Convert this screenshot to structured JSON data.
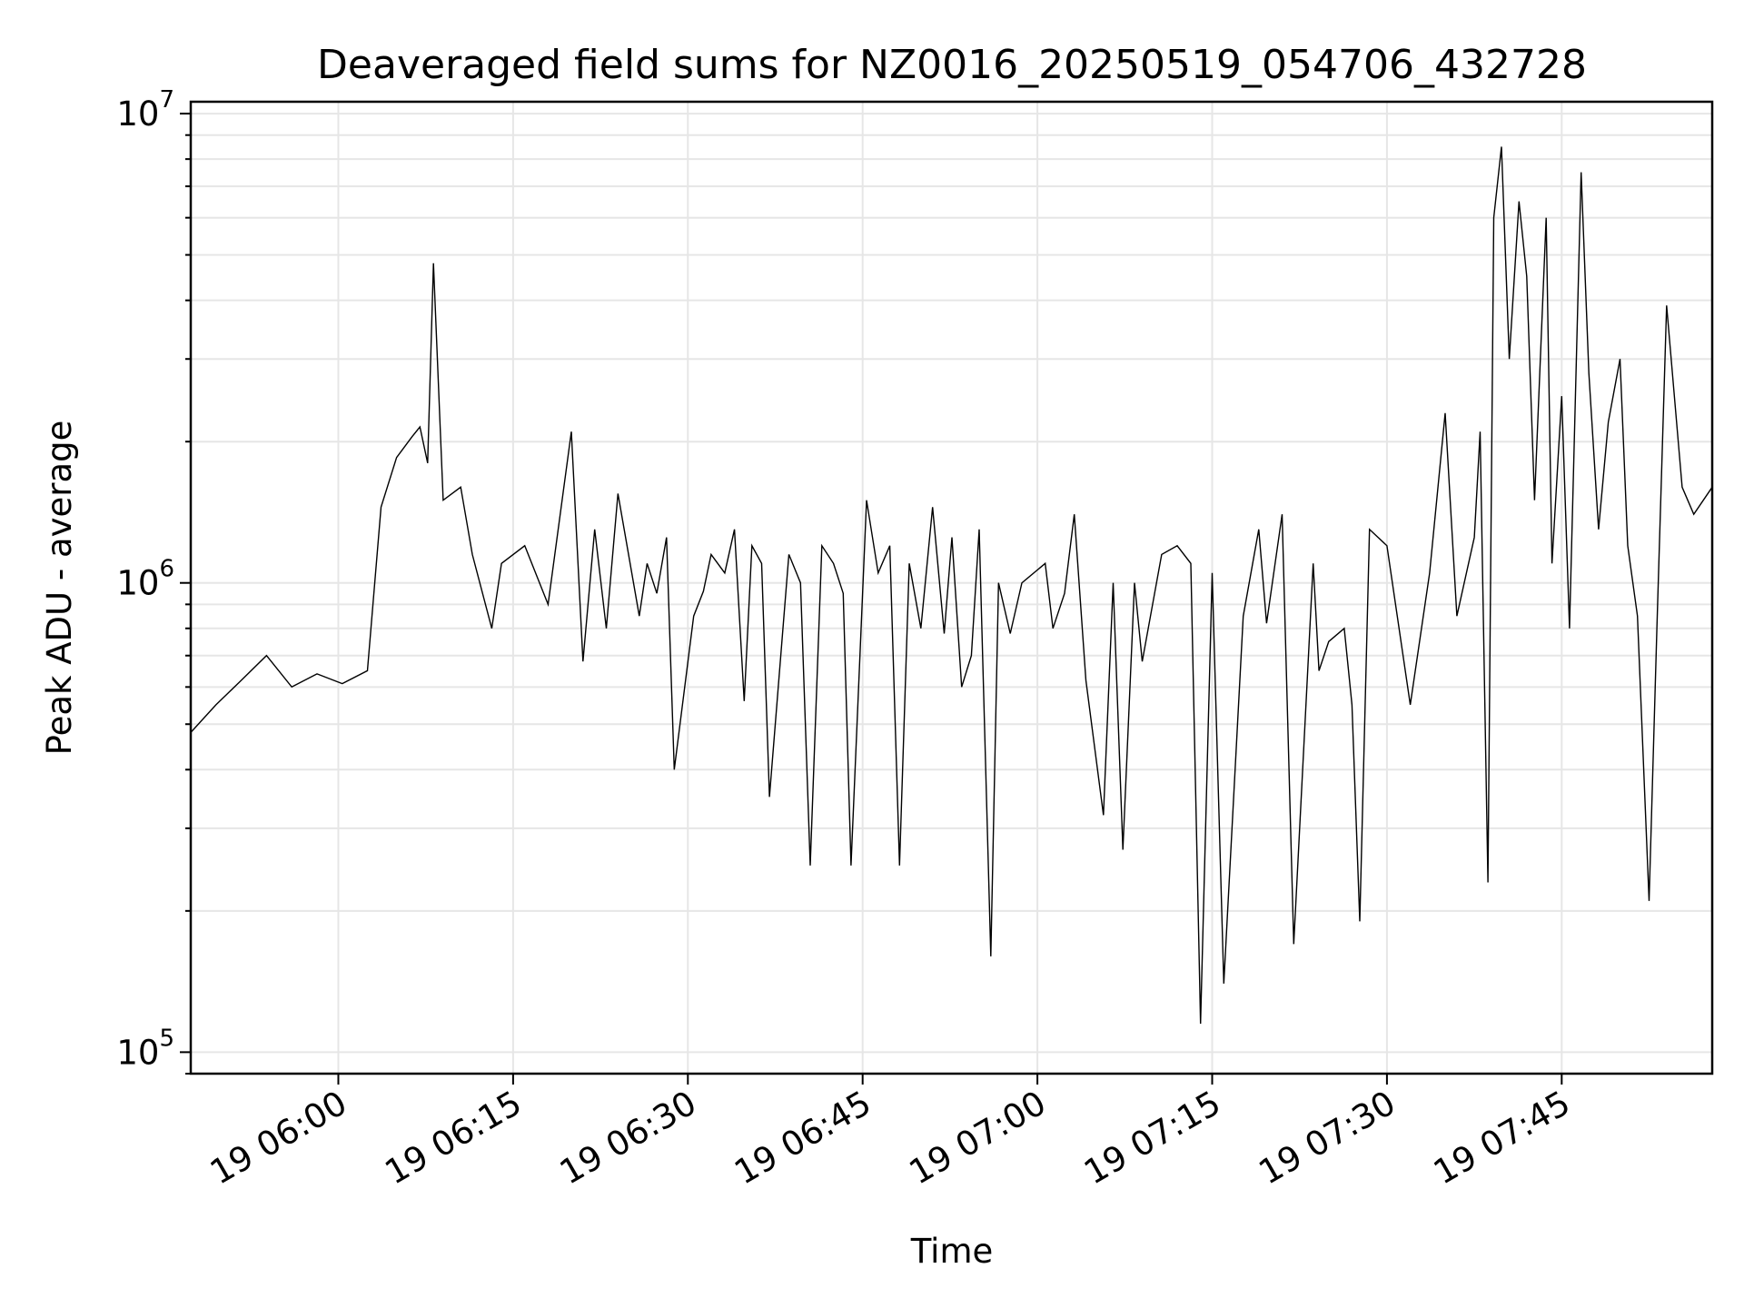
{
  "chart_data": {
    "type": "line",
    "title": "Deaveraged field sums for NZ0016_20250519_054706_432728",
    "xlabel": "Time",
    "ylabel": "Peak ADU - average",
    "yscale": "log",
    "ylim": [
      90000,
      10600000
    ],
    "xlim": [
      "2025-05-19 05:47:20",
      "2025-05-19 07:57:55"
    ],
    "grid": true,
    "x_ticks": [
      {
        "value": "2025-05-19 06:00",
        "label": "19 06:00"
      },
      {
        "value": "2025-05-19 06:15",
        "label": "19 06:15"
      },
      {
        "value": "2025-05-19 06:30",
        "label": "19 06:30"
      },
      {
        "value": "2025-05-19 06:45",
        "label": "19 06:45"
      },
      {
        "value": "2025-05-19 07:00",
        "label": "19 07:00"
      },
      {
        "value": "2025-05-19 07:15",
        "label": "19 07:15"
      },
      {
        "value": "2025-05-19 07:30",
        "label": "19 07:30"
      },
      {
        "value": "2025-05-19 07:45",
        "label": "19 07:45"
      }
    ],
    "y_ticks": [
      {
        "value": 100000,
        "base": "10",
        "exp": "5"
      },
      {
        "value": 1000000,
        "base": "10",
        "exp": "6"
      },
      {
        "value": 10000000,
        "base": "10",
        "exp": "7"
      }
    ],
    "series": [
      {
        "name": "",
        "color": "#000000",
        "x": [
          "2025-05-19 05:47:20",
          "2025-05-19 05:49:30",
          "2025-05-19 05:51:40",
          "2025-05-19 05:53:50",
          "2025-05-19 05:56:00",
          "2025-05-19 05:58:10",
          "2025-05-19 06:00:20",
          "2025-05-19 06:02:30",
          "2025-05-19 06:03:40",
          "2025-05-19 06:05:00",
          "2025-05-19 06:06:20",
          "2025-05-19 06:07:00",
          "2025-05-19 06:07:40",
          "2025-05-19 06:08:10",
          "2025-05-19 06:09:00",
          "2025-05-19 06:10:30",
          "2025-05-19 06:11:30",
          "2025-05-19 06:13:10",
          "2025-05-19 06:14:00",
          "2025-05-19 06:16:00",
          "2025-05-19 06:18:00",
          "2025-05-19 06:20:00",
          "2025-05-19 06:21:00",
          "2025-05-19 06:22:00",
          "2025-05-19 06:23:00",
          "2025-05-19 06:24:00",
          "2025-05-19 06:25:50",
          "2025-05-19 06:26:30",
          "2025-05-19 06:27:20",
          "2025-05-19 06:28:10",
          "2025-05-19 06:28:50",
          "2025-05-19 06:30:30",
          "2025-05-19 06:31:20",
          "2025-05-19 06:32:00",
          "2025-05-19 06:33:10",
          "2025-05-19 06:34:00",
          "2025-05-19 06:34:50",
          "2025-05-19 06:35:30",
          "2025-05-19 06:36:20",
          "2025-05-19 06:37:00",
          "2025-05-19 06:38:40",
          "2025-05-19 06:39:40",
          "2025-05-19 06:40:30",
          "2025-05-19 06:41:30",
          "2025-05-19 06:42:30",
          "2025-05-19 06:43:20",
          "2025-05-19 06:44:00",
          "2025-05-19 06:45:20",
          "2025-05-19 06:46:20",
          "2025-05-19 06:47:20",
          "2025-05-19 06:48:10",
          "2025-05-19 06:49:00",
          "2025-05-19 06:50:00",
          "2025-05-19 06:51:00",
          "2025-05-19 06:52:00",
          "2025-05-19 06:52:40",
          "2025-05-19 06:53:30",
          "2025-05-19 06:54:20",
          "2025-05-19 06:55:00",
          "2025-05-19 06:56:00",
          "2025-05-19 06:56:40",
          "2025-05-19 06:57:40",
          "2025-05-19 06:58:40",
          "2025-05-19 07:00:40",
          "2025-05-19 07:01:20",
          "2025-05-19 07:02:20",
          "2025-05-19 07:03:10",
          "2025-05-19 07:04:10",
          "2025-05-19 07:05:40",
          "2025-05-19 07:06:30",
          "2025-05-19 07:07:20",
          "2025-05-19 07:08:20",
          "2025-05-19 07:09:00",
          "2025-05-19 07:10:40",
          "2025-05-19 07:12:00",
          "2025-05-19 07:13:10",
          "2025-05-19 07:14:00",
          "2025-05-19 07:15:00",
          "2025-05-19 07:16:00",
          "2025-05-19 07:17:40",
          "2025-05-19 07:19:00",
          "2025-05-19 07:19:40",
          "2025-05-19 07:21:00",
          "2025-05-19 07:22:00",
          "2025-05-19 07:23:40",
          "2025-05-19 07:24:10",
          "2025-05-19 07:25:00",
          "2025-05-19 07:26:20",
          "2025-05-19 07:27:00",
          "2025-05-19 07:27:40",
          "2025-05-19 07:28:30",
          "2025-05-19 07:30:00",
          "2025-05-19 07:32:00",
          "2025-05-19 07:33:40",
          "2025-05-19 07:35:00",
          "2025-05-19 07:36:00",
          "2025-05-19 07:37:30",
          "2025-05-19 07:38:00",
          "2025-05-19 07:38:40",
          "2025-05-19 07:39:10",
          "2025-05-19 07:39:50",
          "2025-05-19 07:40:30",
          "2025-05-19 07:41:20",
          "2025-05-19 07:42:00",
          "2025-05-19 07:42:40",
          "2025-05-19 07:43:40",
          "2025-05-19 07:44:10",
          "2025-05-19 07:45:00",
          "2025-05-19 07:45:40",
          "2025-05-19 07:46:40",
          "2025-05-19 07:47:20",
          "2025-05-19 07:48:10",
          "2025-05-19 07:49:00",
          "2025-05-19 07:50:00",
          "2025-05-19 07:50:40",
          "2025-05-19 07:51:30",
          "2025-05-19 07:52:30",
          "2025-05-19 07:53:10",
          "2025-05-19 07:54:00",
          "2025-05-19 07:55:20",
          "2025-05-19 07:56:20",
          "2025-05-19 07:57:55"
        ],
        "values": [
          480000,
          550000,
          620000,
          700000,
          600000,
          640000,
          610000,
          650000,
          1450000,
          1850000,
          2050000,
          2150000,
          1800000,
          4800000,
          1500000,
          1600000,
          1150000,
          800000,
          1100000,
          1200000,
          900000,
          2100000,
          680000,
          1300000,
          800000,
          1550000,
          850000,
          1100000,
          950000,
          1250000,
          400000,
          850000,
          960000,
          1150000,
          1050000,
          1300000,
          560000,
          1200000,
          1100000,
          350000,
          1150000,
          1000000,
          250000,
          1200000,
          1100000,
          950000,
          250000,
          1500000,
          1050000,
          1200000,
          250000,
          1100000,
          800000,
          1450000,
          780000,
          1250000,
          600000,
          700000,
          1300000,
          160000,
          1000000,
          780000,
          1000000,
          1100000,
          800000,
          950000,
          1400000,
          620000,
          320000,
          1000000,
          270000,
          1000000,
          680000,
          1150000,
          1200000,
          1100000,
          115000,
          1050000,
          140000,
          850000,
          1300000,
          820000,
          1400000,
          170000,
          1100000,
          650000,
          750000,
          800000,
          550000,
          190000,
          1300000,
          1200000,
          550000,
          1050000,
          2300000,
          850000,
          1250000,
          2100000,
          230000,
          6000000,
          8500000,
          3000000,
          6500000,
          4500000,
          1500000,
          6000000,
          1100000,
          2500000,
          800000,
          7500000,
          2800000,
          1300000,
          2200000,
          3000000,
          1200000,
          850000,
          210000,
          800000,
          3900000,
          1600000,
          1400000,
          1600000
        ]
      }
    ]
  }
}
